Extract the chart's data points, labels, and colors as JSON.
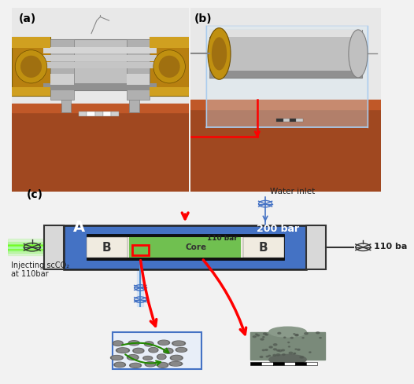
{
  "fig_bg": "#f2f2f2",
  "label_a": "(a)",
  "label_b": "(b)",
  "label_c": "(c)",
  "blue_color": "#4472c4",
  "light_green": "#70c050",
  "red_color": "#ff0000",
  "200bar_text": "200 bar",
  "110bar_text": "110 bar",
  "A_label": "A",
  "B_label": "B",
  "Core_label": "Core",
  "water_inlet": "Water inlet",
  "inject_text": "Injecting scCO₂\nat 110bar",
  "right_110bar": "110 ba",
  "photo_bg_top": "#e8e8e8",
  "photo_bg_bot": "#b06030",
  "cyl_color": "#c8c8c8",
  "cyl_top": "#e8e8e8",
  "cyl_shadow": "#888888",
  "brass_color": "#c8960a",
  "acrylic_color": "#d8e8f0"
}
